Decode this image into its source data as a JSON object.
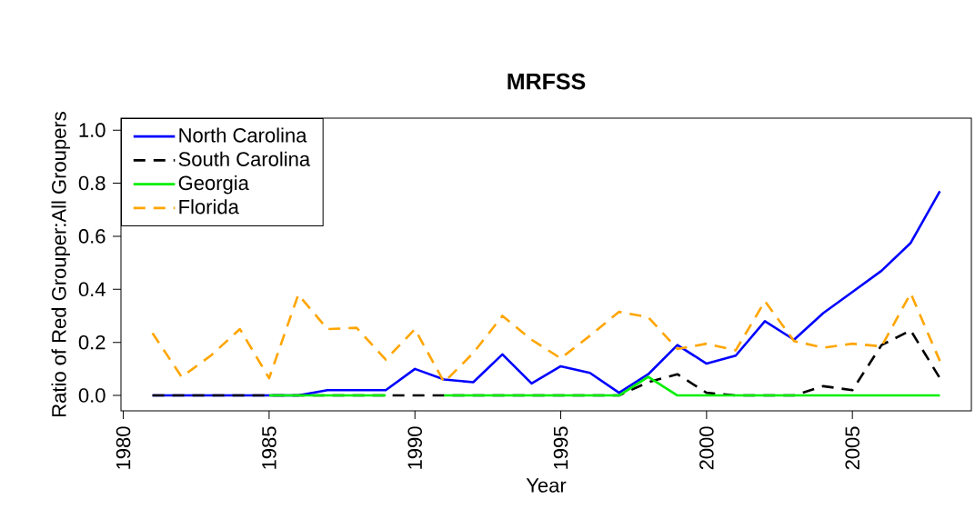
{
  "chart_data": {
    "type": "line",
    "title": "MRFSS",
    "xlabel": "Year",
    "ylabel": "Ratio of Red Grouper:All Groupers",
    "x": [
      1981,
      1982,
      1983,
      1984,
      1985,
      1986,
      1987,
      1988,
      1989,
      1990,
      1991,
      1992,
      1993,
      1994,
      1995,
      1996,
      1997,
      1998,
      1999,
      2000,
      2001,
      2002,
      2003,
      2004,
      2005,
      2006,
      2007,
      2008
    ],
    "series": [
      {
        "name": "North Carolina",
        "color": "#0000ff",
        "line_style": "solid",
        "values": [
          0,
          0,
          0,
          0,
          0,
          0,
          0.02,
          0.02,
          0.02,
          0.1,
          0.06,
          0.05,
          0.155,
          0.045,
          0.11,
          0.085,
          0.01,
          0.08,
          0.19,
          0.12,
          0.15,
          0.28,
          0.21,
          0.31,
          0.39,
          0.47,
          0.575,
          0.77
        ]
      },
      {
        "name": "South Carolina",
        "color": "#000000",
        "line_style": "dashed",
        "values": [
          0,
          0,
          0,
          0,
          0,
          0,
          0,
          0,
          0,
          0,
          0,
          0,
          0,
          0,
          0,
          0,
          0,
          0.05,
          0.08,
          0.01,
          0,
          0,
          0,
          0.035,
          0.02,
          0.19,
          0.245,
          0.065
        ]
      },
      {
        "name": "Georgia",
        "color": "#00ee00",
        "line_style": "solid",
        "values": [
          null,
          null,
          null,
          null,
          0,
          0,
          0,
          0,
          0,
          null,
          0,
          0,
          0,
          0,
          0,
          0,
          0,
          0.07,
          0,
          0,
          0,
          0,
          0,
          0,
          0,
          0,
          0,
          0
        ]
      },
      {
        "name": "Florida",
        "color": "#ffa500",
        "line_style": "dashed",
        "values": [
          0.235,
          0.07,
          0.15,
          0.25,
          0.065,
          0.38,
          0.25,
          0.255,
          0.135,
          0.25,
          0.05,
          0.16,
          0.3,
          0.21,
          0.14,
          0.225,
          0.315,
          0.295,
          0.175,
          0.195,
          0.17,
          0.355,
          0.205,
          0.18,
          0.195,
          0.185,
          0.385,
          0.13
        ]
      }
    ],
    "xlim": [
      1979.92,
      2009.08
    ],
    "ylim": [
      -0.058,
      1.045
    ],
    "xticks": [
      1980,
      1985,
      1990,
      1995,
      2000,
      2005
    ],
    "yticks": [
      {
        "value": 0,
        "label": "0.0"
      },
      {
        "value": 0.2,
        "label": "0.2"
      },
      {
        "value": 0.4,
        "label": "0.4"
      },
      {
        "value": 0.6,
        "label": "0.6"
      },
      {
        "value": 0.8,
        "label": "0.8"
      },
      {
        "value": 1,
        "label": "1.0"
      }
    ],
    "legend": "top left",
    "grid": false
  }
}
